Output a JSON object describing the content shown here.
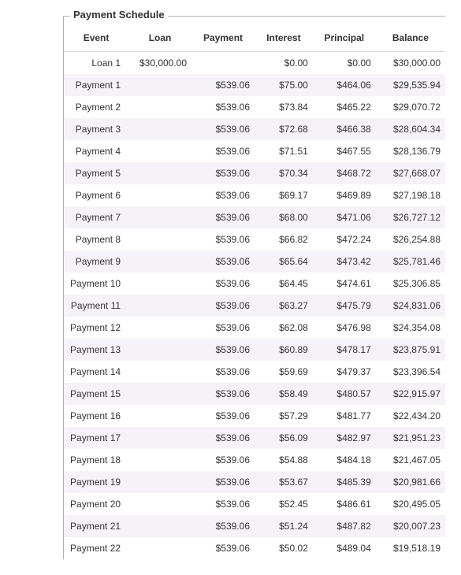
{
  "panel": {
    "title": "Payment Schedule",
    "border_color": "#b0b0b0",
    "title_color": "#333333",
    "title_fontsize": 13
  },
  "table": {
    "type": "table",
    "header_bg": "#ffffff",
    "header_border": "#d8d8d8",
    "row_odd_bg": "#f5f3f8",
    "row_even_bg": "#ffffff",
    "text_color": "#333333",
    "font_size": 12,
    "columns": [
      {
        "key": "event",
        "label": "Event",
        "align": "right"
      },
      {
        "key": "loan",
        "label": "Loan",
        "align": "right"
      },
      {
        "key": "payment",
        "label": "Payment",
        "align": "right"
      },
      {
        "key": "interest",
        "label": "Interest",
        "align": "right"
      },
      {
        "key": "principal",
        "label": "Principal",
        "align": "right"
      },
      {
        "key": "balance",
        "label": "Balance",
        "align": "right"
      }
    ],
    "rows": [
      {
        "event": "Loan 1",
        "loan": "$30,000.00",
        "payment": "",
        "interest": "$0.00",
        "principal": "$0.00",
        "balance": "$30,000.00"
      },
      {
        "event": "Payment 1",
        "loan": "",
        "payment": "$539.06",
        "interest": "$75.00",
        "principal": "$464.06",
        "balance": "$29,535.94"
      },
      {
        "event": "Payment 2",
        "loan": "",
        "payment": "$539.06",
        "interest": "$73.84",
        "principal": "$465.22",
        "balance": "$29,070.72"
      },
      {
        "event": "Payment 3",
        "loan": "",
        "payment": "$539.06",
        "interest": "$72.68",
        "principal": "$466.38",
        "balance": "$28,604.34"
      },
      {
        "event": "Payment 4",
        "loan": "",
        "payment": "$539.06",
        "interest": "$71.51",
        "principal": "$467.55",
        "balance": "$28,136.79"
      },
      {
        "event": "Payment 5",
        "loan": "",
        "payment": "$539.06",
        "interest": "$70.34",
        "principal": "$468.72",
        "balance": "$27,668.07"
      },
      {
        "event": "Payment 6",
        "loan": "",
        "payment": "$539.06",
        "interest": "$69.17",
        "principal": "$469.89",
        "balance": "$27,198.18"
      },
      {
        "event": "Payment 7",
        "loan": "",
        "payment": "$539.06",
        "interest": "$68.00",
        "principal": "$471.06",
        "balance": "$26,727.12"
      },
      {
        "event": "Payment 8",
        "loan": "",
        "payment": "$539.06",
        "interest": "$66.82",
        "principal": "$472.24",
        "balance": "$26,254.88"
      },
      {
        "event": "Payment 9",
        "loan": "",
        "payment": "$539.06",
        "interest": "$65.64",
        "principal": "$473.42",
        "balance": "$25,781.46"
      },
      {
        "event": "Payment 10",
        "loan": "",
        "payment": "$539.06",
        "interest": "$64.45",
        "principal": "$474.61",
        "balance": "$25,306.85"
      },
      {
        "event": "Payment 11",
        "loan": "",
        "payment": "$539.06",
        "interest": "$63.27",
        "principal": "$475.79",
        "balance": "$24,831.06"
      },
      {
        "event": "Payment 12",
        "loan": "",
        "payment": "$539.06",
        "interest": "$62.08",
        "principal": "$476.98",
        "balance": "$24,354.08"
      },
      {
        "event": "Payment 13",
        "loan": "",
        "payment": "$539.06",
        "interest": "$60.89",
        "principal": "$478.17",
        "balance": "$23,875.91"
      },
      {
        "event": "Payment 14",
        "loan": "",
        "payment": "$539.06",
        "interest": "$59.69",
        "principal": "$479.37",
        "balance": "$23,396.54"
      },
      {
        "event": "Payment 15",
        "loan": "",
        "payment": "$539.06",
        "interest": "$58.49",
        "principal": "$480.57",
        "balance": "$22,915.97"
      },
      {
        "event": "Payment 16",
        "loan": "",
        "payment": "$539.06",
        "interest": "$57.29",
        "principal": "$481.77",
        "balance": "$22,434.20"
      },
      {
        "event": "Payment 17",
        "loan": "",
        "payment": "$539.06",
        "interest": "$56.09",
        "principal": "$482.97",
        "balance": "$21,951.23"
      },
      {
        "event": "Payment 18",
        "loan": "",
        "payment": "$539.06",
        "interest": "$54.88",
        "principal": "$484.18",
        "balance": "$21,467.05"
      },
      {
        "event": "Payment 19",
        "loan": "",
        "payment": "$539.06",
        "interest": "$53.67",
        "principal": "$485.39",
        "balance": "$20,981.66"
      },
      {
        "event": "Payment 20",
        "loan": "",
        "payment": "$539.06",
        "interest": "$52.45",
        "principal": "$486.61",
        "balance": "$20,495.05"
      },
      {
        "event": "Payment 21",
        "loan": "",
        "payment": "$539.06",
        "interest": "$51.24",
        "principal": "$487.82",
        "balance": "$20,007.23"
      },
      {
        "event": "Payment 22",
        "loan": "",
        "payment": "$539.06",
        "interest": "$50.02",
        "principal": "$489.04",
        "balance": "$19,518.19"
      }
    ]
  }
}
